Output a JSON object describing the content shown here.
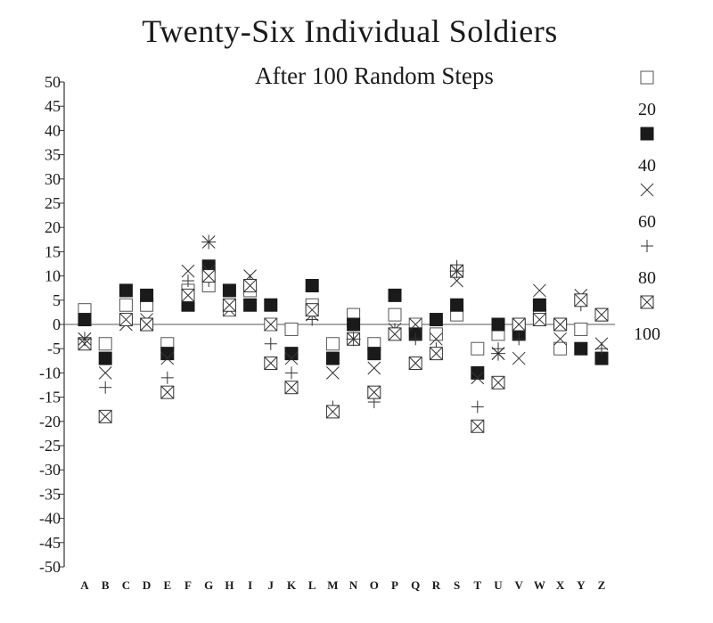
{
  "chart_data": {
    "type": "scatter",
    "title": "Twenty-Six Individual Soldiers",
    "subtitle": "After 100 Random Steps",
    "xlabel": "",
    "ylabel": "",
    "categories": [
      "A",
      "B",
      "C",
      "D",
      "E",
      "F",
      "G",
      "H",
      "I",
      "J",
      "K",
      "L",
      "M",
      "N",
      "O",
      "P",
      "Q",
      "R",
      "S",
      "T",
      "U",
      "V",
      "W",
      "X",
      "Y",
      "Z"
    ],
    "ylim": [
      -50,
      50
    ],
    "yticks": [
      50,
      45,
      40,
      35,
      30,
      25,
      20,
      15,
      10,
      5,
      0,
      -5,
      -10,
      -15,
      -20,
      -25,
      -30,
      -35,
      -40,
      -45,
      -50
    ],
    "grid": false,
    "legend_position": "right",
    "series": [
      {
        "name": "20",
        "marker": "open-square",
        "values": [
          3,
          -4,
          4,
          4,
          -4,
          7,
          8,
          3,
          7,
          0,
          -1,
          4,
          -4,
          2,
          -4,
          2,
          0,
          -2,
          2,
          -5,
          -2,
          0,
          2,
          -5,
          -1,
          2
        ]
      },
      {
        "name": "40",
        "marker": "filled-square",
        "values": [
          1,
          -7,
          7,
          6,
          -6,
          4,
          12,
          7,
          4,
          4,
          -6,
          8,
          -7,
          0,
          -6,
          6,
          -2,
          1,
          4,
          -10,
          0,
          -2,
          4,
          0,
          -5,
          -7
        ]
      },
      {
        "name": "60",
        "marker": "x",
        "values": [
          -3,
          -10,
          0,
          1,
          -7,
          11,
          11,
          3,
          10,
          0,
          -7,
          2,
          -10,
          -3,
          -9,
          -1,
          0,
          -3,
          9,
          -11,
          -6,
          -7,
          7,
          -3,
          6,
          -4
        ]
      },
      {
        "name": "80",
        "marker": "plus",
        "values": [
          -3,
          -13,
          1,
          0,
          -11,
          9,
          9,
          4,
          9,
          -4,
          -10,
          1,
          -17,
          -3,
          -16,
          -1,
          -3,
          -5,
          12,
          -17,
          -5,
          -3,
          1,
          0,
          4,
          -5
        ]
      },
      {
        "name": "100",
        "marker": "crossed-box",
        "values": [
          -4,
          -19,
          1,
          0,
          -14,
          6,
          10,
          4,
          8,
          -8,
          -13,
          3,
          -18,
          -3,
          -14,
          -2,
          -8,
          -6,
          11,
          -21,
          -12,
          0,
          1,
          0,
          5,
          2
        ]
      }
    ],
    "extra_markers": [
      {
        "category": "G",
        "value": 17,
        "marker": "asterisk"
      },
      {
        "category": "N",
        "value": -3,
        "marker": "asterisk"
      },
      {
        "category": "S",
        "value": 11,
        "marker": "asterisk"
      },
      {
        "category": "U",
        "value": -6,
        "marker": "asterisk"
      },
      {
        "category": "A",
        "value": -3,
        "marker": "asterisk"
      }
    ]
  }
}
